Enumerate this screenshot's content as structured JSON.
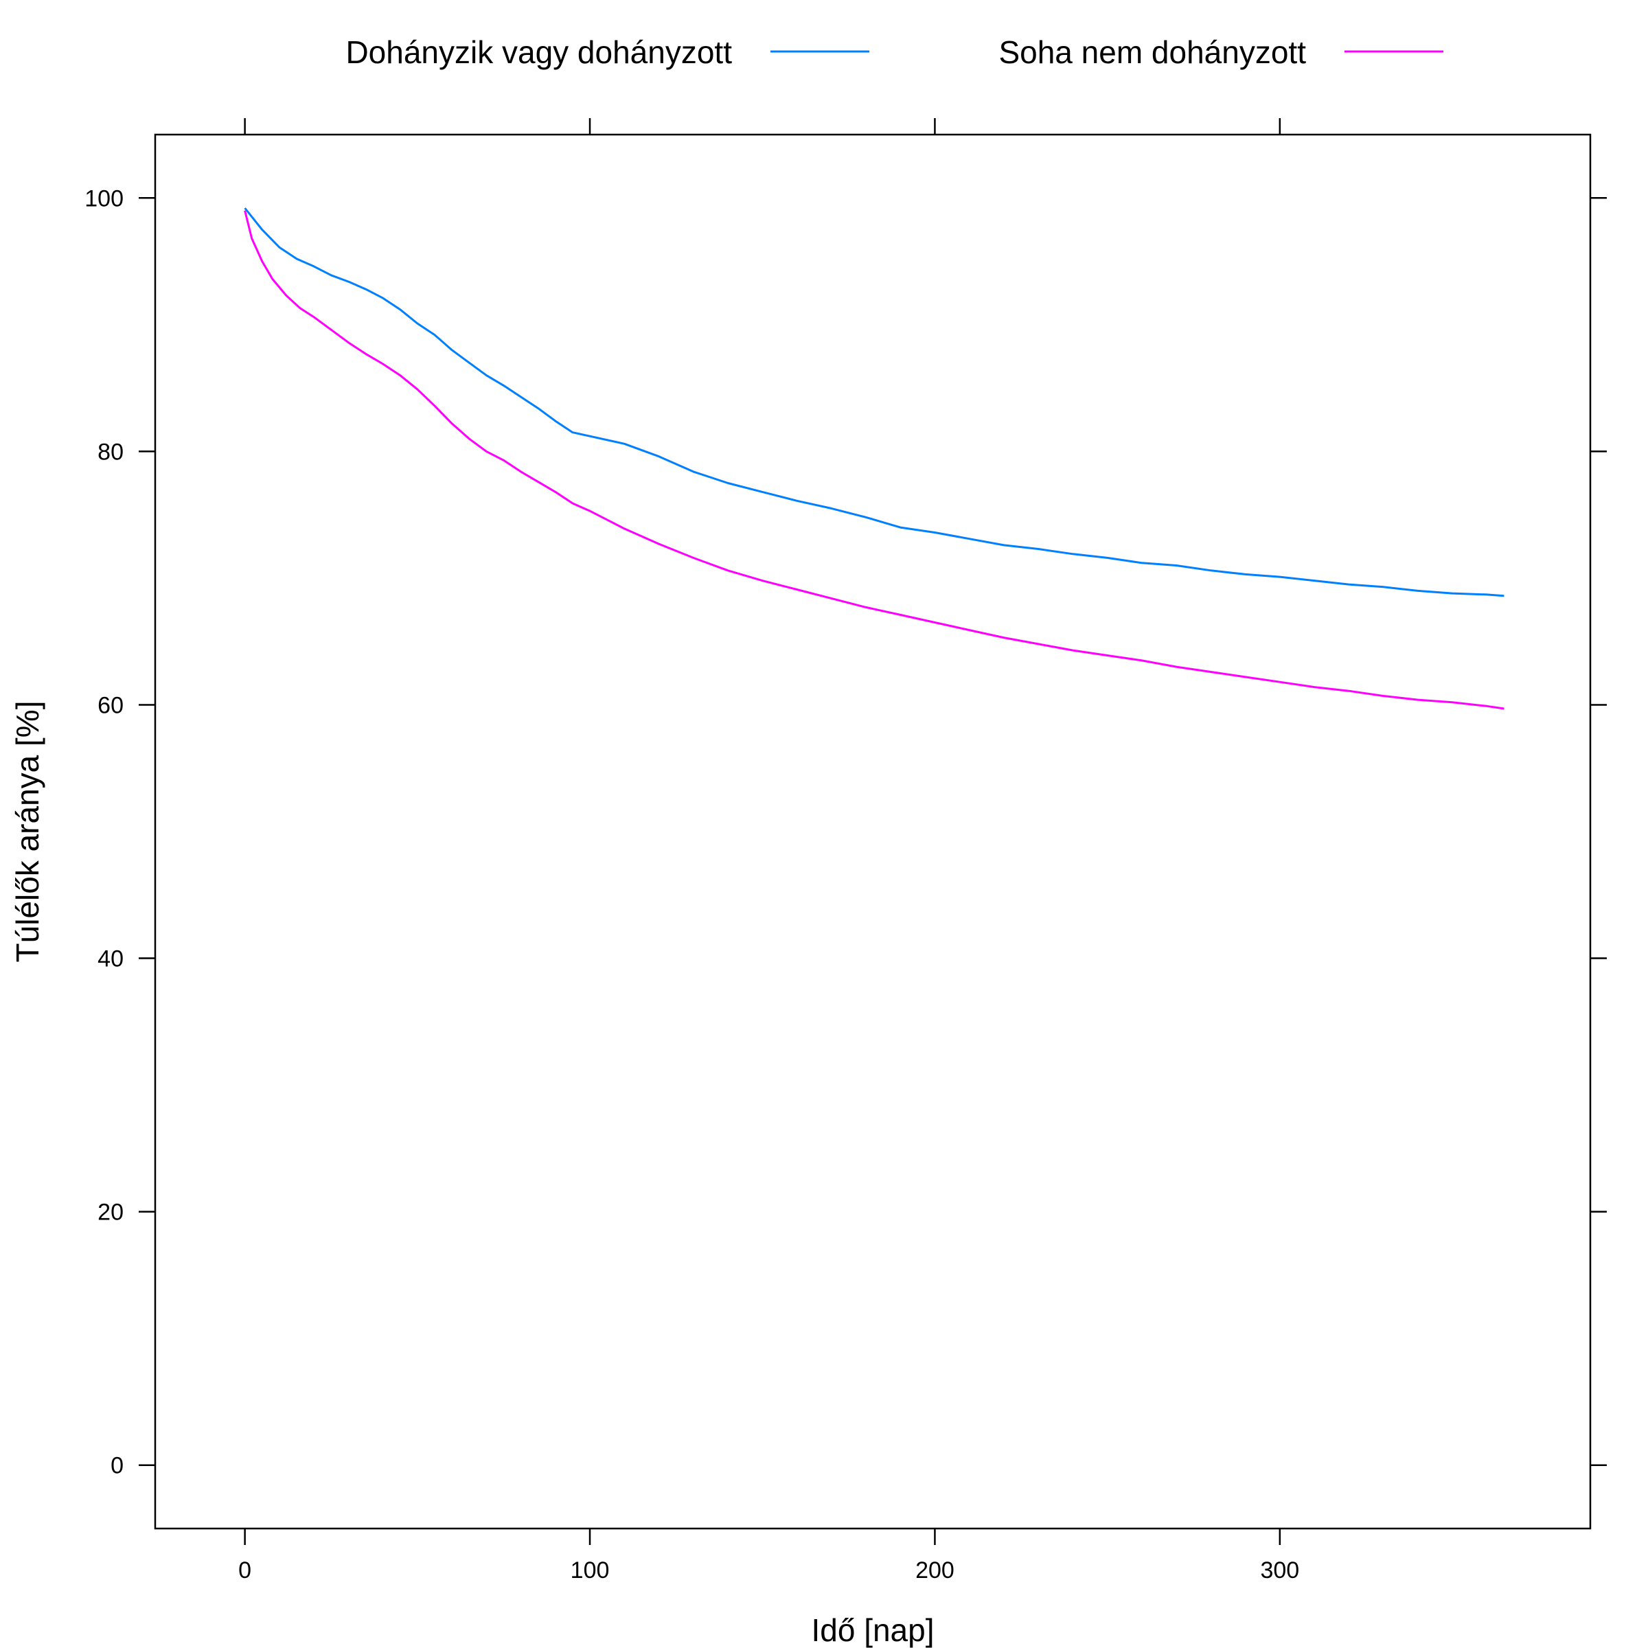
{
  "chart_data": {
    "type": "line",
    "title": "",
    "xlabel": "Idő [nap]",
    "ylabel": "Túlélők aránya [%]",
    "xlim": [
      -26,
      390
    ],
    "ylim": [
      -5,
      105
    ],
    "xticks": [
      0,
      100,
      200,
      300
    ],
    "yticks": [
      0,
      20,
      40,
      60,
      80,
      100
    ],
    "grid": false,
    "legend_position": "top",
    "series": [
      {
        "name": "Dohányzik vagy dohányzott",
        "color": "#0080ff",
        "x": [
          0,
          5,
          10,
          15,
          20,
          25,
          30,
          35,
          40,
          45,
          50,
          55,
          60,
          65,
          70,
          75,
          80,
          85,
          90,
          95,
          100,
          110,
          120,
          130,
          140,
          150,
          160,
          170,
          180,
          190,
          200,
          210,
          220,
          230,
          240,
          250,
          260,
          270,
          280,
          290,
          300,
          310,
          320,
          330,
          340,
          350,
          360,
          365
        ],
        "y": [
          99.2,
          97.5,
          96.1,
          95.2,
          94.6,
          93.9,
          93.4,
          92.8,
          92.1,
          91.2,
          90.1,
          89.2,
          88.0,
          87.0,
          86.0,
          85.2,
          84.3,
          83.4,
          82.4,
          81.5,
          81.2,
          80.6,
          79.6,
          78.4,
          77.5,
          76.8,
          76.1,
          75.5,
          74.8,
          74.0,
          73.6,
          73.1,
          72.6,
          72.3,
          71.9,
          71.6,
          71.2,
          71.0,
          70.6,
          70.3,
          70.1,
          69.8,
          69.5,
          69.3,
          69.0,
          68.8,
          68.7,
          68.6
        ]
      },
      {
        "name": "Soha nem dohányzott",
        "color": "#ff00ff",
        "x": [
          0,
          2,
          5,
          8,
          12,
          16,
          20,
          25,
          30,
          35,
          40,
          45,
          50,
          55,
          60,
          65,
          70,
          75,
          80,
          85,
          90,
          95,
          100,
          110,
          120,
          130,
          140,
          150,
          160,
          170,
          180,
          190,
          200,
          210,
          220,
          230,
          240,
          250,
          260,
          270,
          280,
          290,
          300,
          310,
          320,
          330,
          340,
          350,
          360,
          365
        ],
        "y": [
          99.0,
          96.8,
          95.0,
          93.6,
          92.3,
          91.3,
          90.6,
          89.6,
          88.6,
          87.7,
          86.9,
          86.0,
          84.9,
          83.6,
          82.2,
          81.0,
          80.0,
          79.3,
          78.4,
          77.6,
          76.8,
          75.9,
          75.3,
          73.9,
          72.7,
          71.6,
          70.6,
          69.8,
          69.1,
          68.4,
          67.7,
          67.1,
          66.5,
          65.9,
          65.3,
          64.8,
          64.3,
          63.9,
          63.5,
          63.0,
          62.6,
          62.2,
          61.8,
          61.4,
          61.1,
          60.7,
          60.4,
          60.2,
          59.9,
          59.7
        ]
      }
    ]
  }
}
